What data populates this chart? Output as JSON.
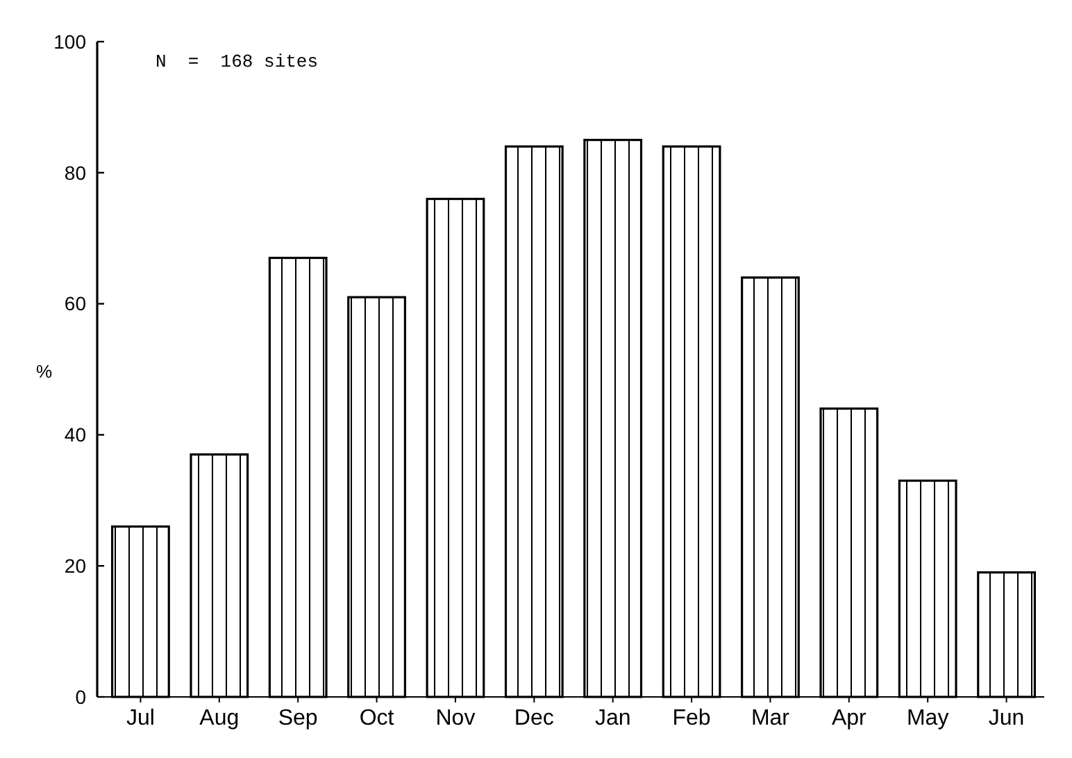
{
  "chart_data": {
    "type": "bar",
    "ylabel": "%",
    "annotations": [
      "N  =  168 sites"
    ],
    "categories": [
      "Jul",
      "Aug",
      "Sep",
      "Oct",
      "Nov",
      "Dec",
      "Jan",
      "Feb",
      "Mar",
      "Apr",
      "May",
      "Jun"
    ],
    "values": [
      26,
      37,
      67,
      61,
      76,
      84,
      85,
      84,
      64,
      44,
      33,
      19
    ],
    "color": "#000000",
    "ylim": [
      0,
      100
    ],
    "yticks": [
      0,
      20,
      40,
      60,
      80,
      100
    ],
    "grid": false
  }
}
